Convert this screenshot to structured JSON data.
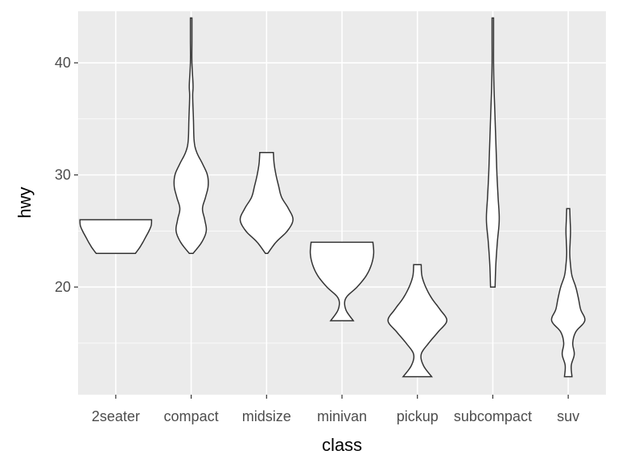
{
  "chart_data": {
    "type": "violin",
    "title": "",
    "xlabel": "class",
    "ylabel": "hwy",
    "categories": [
      "2seater",
      "compact",
      "midsize",
      "minivan",
      "pickup",
      "subcompact",
      "suv"
    ],
    "ylim": [
      10.4,
      44.6
    ],
    "yticks": [
      20,
      30,
      40
    ],
    "ytick_labels": [
      "20",
      "30",
      "40"
    ],
    "grid": true,
    "legend": "none",
    "colors": {
      "fill": "#ffffff",
      "outline": "#333333",
      "panel": "#ebebeb",
      "grid": "#ffffff"
    },
    "violins": [
      {
        "category": "2seater",
        "min": 23,
        "max": 26,
        "profile": [
          [
            23,
            0.52
          ],
          [
            23.5,
            0.63
          ],
          [
            24,
            0.72
          ],
          [
            24.5,
            0.8
          ],
          [
            25,
            0.88
          ],
          [
            25.5,
            0.94
          ],
          [
            26,
            0.95
          ]
        ]
      },
      {
        "category": "compact",
        "min": 23,
        "max": 44,
        "profile": [
          [
            23,
            0.05
          ],
          [
            24,
            0.28
          ],
          [
            25,
            0.4
          ],
          [
            26,
            0.36
          ],
          [
            27,
            0.3
          ],
          [
            28,
            0.38
          ],
          [
            29,
            0.45
          ],
          [
            30,
            0.43
          ],
          [
            31,
            0.3
          ],
          [
            32,
            0.15
          ],
          [
            33,
            0.08
          ],
          [
            35,
            0.06
          ],
          [
            37,
            0.04
          ],
          [
            38,
            0.05
          ],
          [
            40,
            0.02
          ],
          [
            42,
            0.02
          ],
          [
            44,
            0.02
          ]
        ]
      },
      {
        "category": "midsize",
        "min": 23,
        "max": 32,
        "profile": [
          [
            23,
            0.03
          ],
          [
            24,
            0.25
          ],
          [
            25,
            0.55
          ],
          [
            26,
            0.7
          ],
          [
            27,
            0.58
          ],
          [
            28,
            0.4
          ],
          [
            29,
            0.32
          ],
          [
            30,
            0.25
          ],
          [
            31,
            0.2
          ],
          [
            32,
            0.18
          ]
        ]
      },
      {
        "category": "minivan",
        "min": 17,
        "max": 24,
        "profile": [
          [
            17,
            0.3
          ],
          [
            18,
            0.1
          ],
          [
            19,
            0.1
          ],
          [
            20,
            0.4
          ],
          [
            21,
            0.64
          ],
          [
            22,
            0.78
          ],
          [
            23,
            0.84
          ],
          [
            24,
            0.82
          ]
        ]
      },
      {
        "category": "pickup",
        "min": 12,
        "max": 22,
        "profile": [
          [
            12,
            0.38
          ],
          [
            13,
            0.16
          ],
          [
            14,
            0.1
          ],
          [
            15,
            0.3
          ],
          [
            16,
            0.55
          ],
          [
            17,
            0.78
          ],
          [
            18,
            0.6
          ],
          [
            19,
            0.38
          ],
          [
            20,
            0.22
          ],
          [
            21,
            0.12
          ],
          [
            22,
            0.1
          ]
        ]
      },
      {
        "category": "subcompact",
        "min": 20,
        "max": 44,
        "profile": [
          [
            20,
            0.06
          ],
          [
            22,
            0.08
          ],
          [
            24,
            0.12
          ],
          [
            26,
            0.17
          ],
          [
            28,
            0.14
          ],
          [
            30,
            0.11
          ],
          [
            32,
            0.09
          ],
          [
            34,
            0.07
          ],
          [
            36,
            0.05
          ],
          [
            38,
            0.03
          ],
          [
            40,
            0.02
          ],
          [
            42,
            0.02
          ],
          [
            44,
            0.02
          ]
        ]
      },
      {
        "category": "suv",
        "min": 12,
        "max": 27,
        "profile": [
          [
            12,
            0.1
          ],
          [
            13,
            0.08
          ],
          [
            14,
            0.16
          ],
          [
            15,
            0.12
          ],
          [
            16,
            0.2
          ],
          [
            17,
            0.44
          ],
          [
            18,
            0.33
          ],
          [
            19,
            0.27
          ],
          [
            20,
            0.2
          ],
          [
            21,
            0.1
          ],
          [
            22,
            0.06
          ],
          [
            23,
            0.04
          ],
          [
            24,
            0.05
          ],
          [
            25,
            0.06
          ],
          [
            26,
            0.05
          ],
          [
            27,
            0.04
          ]
        ]
      }
    ]
  }
}
